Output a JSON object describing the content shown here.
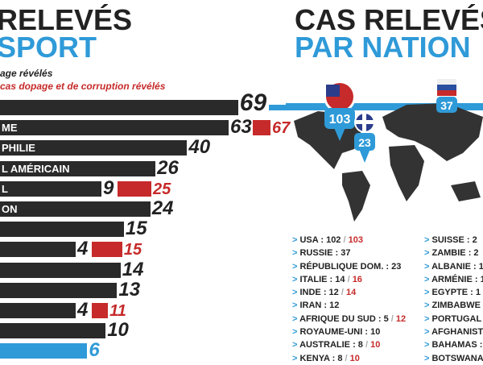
{
  "left_title": [
    "RELEVÉS",
    "SPORT"
  ],
  "right_title": [
    "CAS RELEVÉS",
    "PAR NATION"
  ],
  "legend": {
    "doping": "age révélés",
    "doping_corruption": "cas dopage et de corruption révélés"
  },
  "colors": {
    "bar": "#2a2a2a",
    "red": "#c62a2a",
    "blue": "#2f9ad8"
  },
  "chart_data": {
    "type": "bar",
    "orientation": "horizontal",
    "categories": [
      "",
      "ME",
      "PHILIE",
      "L AMÉRICAIN",
      "L",
      "ON",
      "",
      "",
      "",
      "",
      "",
      "",
      ""
    ],
    "series": [
      {
        "name": "dopage révélés",
        "values": [
          69,
          63,
          40,
          26,
          9,
          24,
          15,
          4,
          14,
          13,
          4,
          10,
          6
        ]
      },
      {
        "name": "cas dopage et de corruption révélés",
        "values": [
          null,
          67,
          null,
          null,
          25,
          null,
          null,
          15,
          null,
          null,
          11,
          null,
          null
        ]
      }
    ],
    "highlight": [
      0,
      12
    ]
  },
  "map_pins": [
    {
      "label": "103",
      "flag": "usa"
    },
    {
      "label": "23",
      "flag": "dominican-republic"
    },
    {
      "label": "37",
      "flag": "russia"
    }
  ],
  "countries_col1": [
    {
      "name": "USA : 102",
      "extra": "103"
    },
    {
      "name": "RUSSIE : 37"
    },
    {
      "name": "RÉPUBLIQUE DOM. : 23"
    },
    {
      "name": "ITALIE : 14",
      "extra": "16"
    },
    {
      "name": "INDE : 12",
      "extra": "14"
    },
    {
      "name": "IRAN : 12"
    },
    {
      "name": "AFRIQUE DU SUD : 5",
      "extra": "12"
    },
    {
      "name": "ROYAUME-UNI : 10"
    },
    {
      "name": "AUSTRALIE : 8",
      "extra": "10"
    },
    {
      "name": "KENYA : 8",
      "extra": "10"
    }
  ],
  "countries_col2": [
    {
      "name": "SUISSE : 2"
    },
    {
      "name": "ZAMBIE : 2"
    },
    {
      "name": "ALBANIE : 1"
    },
    {
      "name": "ARMÉNIE : 1"
    },
    {
      "name": "EGYPTE : 1 /"
    },
    {
      "name": "ZIMBABWE"
    },
    {
      "name": "PORTUGAL"
    },
    {
      "name": "AFGHANIST"
    },
    {
      "name": "BAHAMAS :"
    },
    {
      "name": "BOTSWANA"
    }
  ]
}
